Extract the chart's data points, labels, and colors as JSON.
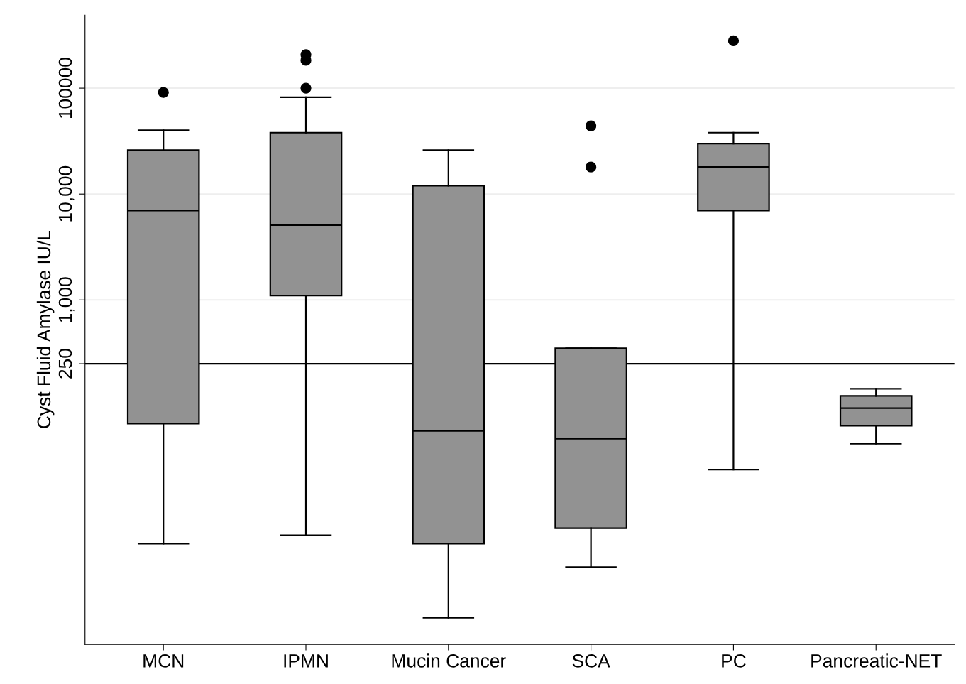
{
  "chart_data": {
    "type": "box",
    "ylabel": "Cyst Fluid Amylase IU/L",
    "categories": [
      "MCN",
      "IPMN",
      "Mucin Cancer",
      "SCA",
      "PC",
      "Pancreatic-NET"
    ],
    "boxes": [
      {
        "low": 5,
        "q1": 68,
        "median": 7000,
        "q3": 26000,
        "high": 40000,
        "outliers": [
          91000
        ]
      },
      {
        "low": 6,
        "q1": 1100,
        "median": 5100,
        "q3": 38000,
        "high": 82000,
        "outliers": [
          207000,
          183000,
          100000
        ]
      },
      {
        "low": 1,
        "q1": 5,
        "median": 58,
        "q3": 12000,
        "high": 26000
      },
      {
        "low": 3,
        "q1": 7,
        "median": 49,
        "q3": 350,
        "high": 350,
        "outliers": [
          44000,
          18000
        ]
      },
      {
        "low": 25,
        "q1": 7000,
        "median": 18000,
        "q3": 30000,
        "high": 38000,
        "outliers": [
          280000
        ]
      },
      {
        "low": 44,
        "q1": 65,
        "median": 95,
        "q3": 124,
        "high": 145
      }
    ],
    "color": "#929292",
    "log": true,
    "ylim": [
      0.56,
      490000
    ],
    "yticks": [
      250,
      {
        "value": 1000,
        "label": "1,000"
      },
      {
        "value": 10000,
        "label": "10,000"
      },
      100000
    ],
    "ref_lines": [
      {
        "axis": "y",
        "value": 250,
        "color": "#000000"
      }
    ],
    "grid": "y"
  }
}
